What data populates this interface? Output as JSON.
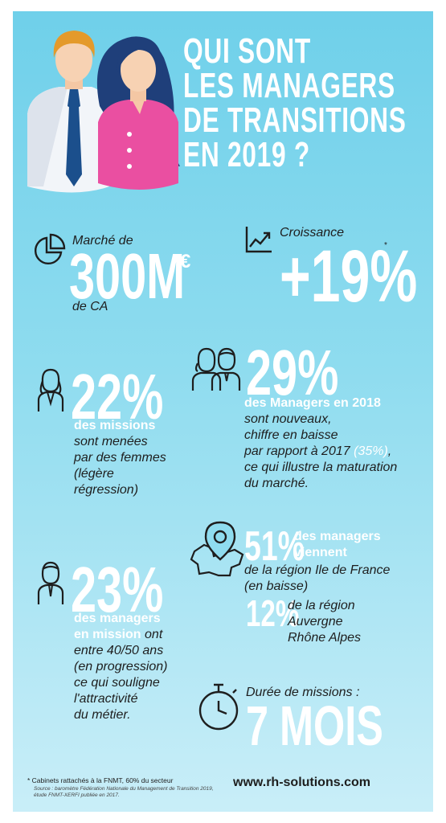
{
  "title": [
    "QUI SONT",
    "LES MANAGERS",
    "DE TRANSITIONS",
    "EN 2019 ?"
  ],
  "marche": {
    "label": "Marché de",
    "value": "300M",
    "currency": "€",
    "suffix": "de CA"
  },
  "croissance": {
    "label": "Croissance",
    "value": "+19%",
    "asterisk": "*"
  },
  "nouveaux": {
    "value": "29%",
    "line1": "des Managers en 2018",
    "line2": "sont nouveaux,",
    "line3": "chiffre en baisse",
    "line4a": "par rapport à 2017 ",
    "line4b": "(35%)",
    "line4c": ",",
    "line5": "ce qui illustre la maturation",
    "line6": "du marché."
  },
  "femmes": {
    "value": "22%",
    "line1": "des missions",
    "line2": "sont menées",
    "line3": "par des femmes",
    "line4": "(légère",
    "line5": "régression)"
  },
  "region": {
    "value1": "51%",
    "line1": "des managers",
    "line2": "viennent",
    "line3": "de la région Ile de France",
    "line4": "(en baisse)",
    "value2": "12%",
    "line5": "de la région",
    "line6": "Auvergne",
    "line7": "Rhône Alpes"
  },
  "age": {
    "value": "23%",
    "line1": "des managers",
    "line2a": "en mission",
    "line2b": " ont",
    "line3": "entre 40/50 ans",
    "line4": "(en progression)",
    "line5": "ce qui souligne",
    "line6": "l'attractivité",
    "line7": "du métier."
  },
  "duree": {
    "label": "Durée de missions :",
    "value": "7 MOIS"
  },
  "footer": {
    "note": "* Cabinets rattachés à la FNMT, 60% du secteur",
    "source1": "Source : baromètre Fédération Nationale du Management de Transition 2019,",
    "source2": "étude FNMT-XERFI publiée en 2017.",
    "website": "www.rh-solutions.com"
  },
  "colors": {
    "accent_pink": "#ea4fa1",
    "dark": "#1e1e1e",
    "navy": "#1f3f7a"
  }
}
